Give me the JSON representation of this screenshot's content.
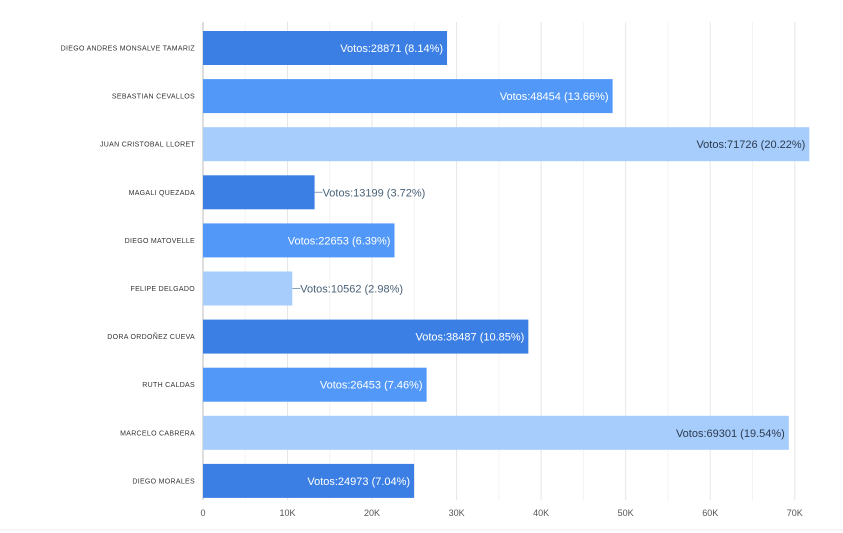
{
  "chart_data": {
    "type": "bar",
    "orientation": "horizontal",
    "categories": [
      "DIEGO ANDRES MONSALVE TAMARIZ",
      "SEBASTIAN CEVALLOS",
      "JUAN CRISTOBAL LLORET",
      "MAGALI QUEZADA",
      "DIEGO MATOVELLE",
      "FELIPE DELGADO",
      "DORA ORDOÑEZ CUEVA",
      "RUTH CALDAS",
      "MARCELO CABRERA",
      "DIEGO MORALES"
    ],
    "values": [
      28871,
      48454,
      71726,
      13199,
      22653,
      10562,
      38487,
      26453,
      69301,
      24973
    ],
    "data_labels": [
      "Votos:28871 (8.14%)",
      "Votos:48454 (13.66%)",
      "Votos:71726 (20.22%)",
      "Votos:13199 (3.72%)",
      "Votos:22653 (6.39%)",
      "Votos:10562 (2.98%)",
      "Votos:38487 (10.85%)",
      "Votos:26453 (7.46%)",
      "Votos:69301 (19.54%)",
      "Votos:24973 (7.04%)"
    ],
    "bar_colors": [
      "#3b7fe4",
      "#5198f8",
      "#a6cdfb",
      "#3b7fe4",
      "#5198f8",
      "#a6cdfb",
      "#3b7fe4",
      "#5198f8",
      "#a6cdfb",
      "#3b7fe4"
    ],
    "xlim": [
      0,
      75000
    ],
    "x_ticks": [
      0,
      10000,
      20000,
      30000,
      40000,
      50000,
      60000,
      70000
    ],
    "x_tick_labels": [
      "0",
      "10K",
      "20K",
      "30K",
      "40K",
      "50K",
      "60K",
      "70K"
    ],
    "grid": true,
    "title": "",
    "xlabel": "",
    "ylabel": ""
  }
}
